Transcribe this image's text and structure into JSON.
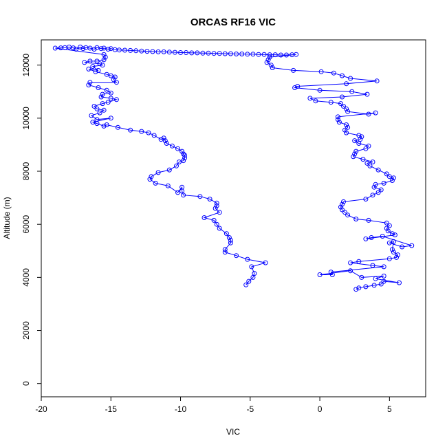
{
  "chart_data": {
    "type": "scatter",
    "title": "ORCAS RF16 VIC",
    "xlabel": "VIC",
    "ylabel": "Altitude (m)",
    "xlim": [
      -20,
      7.6
    ],
    "ylim": [
      -500,
      12950
    ],
    "x_ticks": [
      -20,
      -15,
      -10,
      -5,
      0,
      5
    ],
    "y_ticks": [
      0,
      2000,
      4000,
      6000,
      8000,
      10000,
      12000
    ],
    "grid": false,
    "legend": "none",
    "series": [
      {
        "color": "#0000ff",
        "marker": "open-circle",
        "connect": "line",
        "points": [
          [
            -5.3,
            3720
          ],
          [
            -5.1,
            3850
          ],
          [
            -4.8,
            4000
          ],
          [
            -4.7,
            4150
          ],
          [
            -4.9,
            4400
          ],
          [
            -3.9,
            4550
          ],
          [
            -5.2,
            4680
          ],
          [
            -6.0,
            4820
          ],
          [
            -6.8,
            4950
          ],
          [
            -6.8,
            5050
          ],
          [
            -6.4,
            5300
          ],
          [
            -6.4,
            5400
          ],
          [
            -6.5,
            5500
          ],
          [
            -6.7,
            5650
          ],
          [
            -7.2,
            5850
          ],
          [
            -7.4,
            6000
          ],
          [
            -7.6,
            6150
          ],
          [
            -8.3,
            6250
          ],
          [
            -7.2,
            6450
          ],
          [
            -7.5,
            6600
          ],
          [
            -7.4,
            6700
          ],
          [
            -7.4,
            6800
          ],
          [
            -7.9,
            6950
          ],
          [
            -8.6,
            7050
          ],
          [
            -9.8,
            7100
          ],
          [
            -9.9,
            7250
          ],
          [
            -9.9,
            7400
          ],
          [
            -10.2,
            7200
          ],
          [
            -10.9,
            7450
          ],
          [
            -11.8,
            7550
          ],
          [
            -12.2,
            7700
          ],
          [
            -12.1,
            7800
          ],
          [
            -11.6,
            7950
          ],
          [
            -10.8,
            8050
          ],
          [
            -10.3,
            8200
          ],
          [
            -10.1,
            8350
          ],
          [
            -9.8,
            8400
          ],
          [
            -9.7,
            8500
          ],
          [
            -9.7,
            8600
          ],
          [
            -9.8,
            8650
          ],
          [
            -9.9,
            8750
          ],
          [
            -10.2,
            8850
          ],
          [
            -10.6,
            8950
          ],
          [
            -11.0,
            9050
          ],
          [
            -11.1,
            9150
          ],
          [
            -11.2,
            9250
          ],
          [
            -11.4,
            9200
          ],
          [
            -11.9,
            9350
          ],
          [
            -12.3,
            9450
          ],
          [
            -12.8,
            9500
          ],
          [
            -13.6,
            9550
          ],
          [
            -14.5,
            9650
          ],
          [
            -15.3,
            9750
          ],
          [
            -15.5,
            9700
          ],
          [
            -16.0,
            9800
          ],
          [
            -16.3,
            9850
          ],
          [
            -15.0,
            10000
          ],
          [
            -16.0,
            9950
          ],
          [
            -16.4,
            10100
          ],
          [
            -15.8,
            10200
          ],
          [
            -15.5,
            10300
          ],
          [
            -16.0,
            10350
          ],
          [
            -16.2,
            10450
          ],
          [
            -15.6,
            10550
          ],
          [
            -15.2,
            10600
          ],
          [
            -14.6,
            10700
          ],
          [
            -15.0,
            10750
          ],
          [
            -15.7,
            10800
          ],
          [
            -15.6,
            10900
          ],
          [
            -15.0,
            10950
          ],
          [
            -15.3,
            11050
          ],
          [
            -15.9,
            11150
          ],
          [
            -16.6,
            11250
          ],
          [
            -16.5,
            11350
          ],
          [
            -14.6,
            11350
          ],
          [
            -14.8,
            11450
          ],
          [
            -14.7,
            11550
          ],
          [
            -15.0,
            11600
          ],
          [
            -15.3,
            11650
          ],
          [
            -16.1,
            11750
          ],
          [
            -16.6,
            11850
          ],
          [
            -15.9,
            11800
          ],
          [
            -16.3,
            11950
          ],
          [
            -15.6,
            12000
          ],
          [
            -15.8,
            12050
          ],
          [
            -16.9,
            12100
          ],
          [
            -16.5,
            12150
          ],
          [
            -16.0,
            12150
          ],
          [
            -15.5,
            12200
          ],
          [
            -15.4,
            12300
          ],
          [
            -15.5,
            12400
          ],
          [
            -19.0,
            12640
          ],
          [
            -18.6,
            12650
          ],
          [
            -18.3,
            12660
          ],
          [
            -18.0,
            12680
          ],
          [
            -17.7,
            12650
          ],
          [
            -17.5,
            12600
          ],
          [
            -17.2,
            12680
          ],
          [
            -17.0,
            12620
          ],
          [
            -16.8,
            12660
          ],
          [
            -16.5,
            12640
          ],
          [
            -16.2,
            12600
          ],
          [
            -16.0,
            12660
          ],
          [
            -15.7,
            12620
          ],
          [
            -15.5,
            12640
          ],
          [
            -15.2,
            12600
          ],
          [
            -15.0,
            12620
          ],
          [
            -14.7,
            12580
          ],
          [
            -14.4,
            12570
          ],
          [
            -14.0,
            12560
          ],
          [
            -13.6,
            12550
          ],
          [
            -13.2,
            12540
          ],
          [
            -12.8,
            12530
          ],
          [
            -12.4,
            12520
          ],
          [
            -12.0,
            12510
          ],
          [
            -11.6,
            12500
          ],
          [
            -11.2,
            12500
          ],
          [
            -10.8,
            12490
          ],
          [
            -10.4,
            12480
          ],
          [
            -10.0,
            12470
          ],
          [
            -9.6,
            12470
          ],
          [
            -9.2,
            12460
          ],
          [
            -8.8,
            12460
          ],
          [
            -8.4,
            12450
          ],
          [
            -8.0,
            12450
          ],
          [
            -7.6,
            12440
          ],
          [
            -7.2,
            12440
          ],
          [
            -6.8,
            12430
          ],
          [
            -6.4,
            12430
          ],
          [
            -6.0,
            12420
          ],
          [
            -5.6,
            12420
          ],
          [
            -5.2,
            12410
          ],
          [
            -4.8,
            12410
          ],
          [
            -4.4,
            12400
          ],
          [
            -4.0,
            12400
          ],
          [
            -3.6,
            12390
          ],
          [
            -3.2,
            12390
          ],
          [
            -2.8,
            12380
          ],
          [
            -2.4,
            12380
          ],
          [
            -2.0,
            12390
          ],
          [
            -1.7,
            12400
          ],
          [
            -3.6,
            12300
          ],
          [
            -3.7,
            12200
          ],
          [
            -3.8,
            12100
          ],
          [
            -3.5,
            12000
          ],
          [
            -3.4,
            11900
          ],
          [
            -1.9,
            11800
          ],
          [
            0.1,
            11750
          ],
          [
            1.0,
            11700
          ],
          [
            1.6,
            11600
          ],
          [
            2.2,
            11500
          ],
          [
            4.1,
            11400
          ],
          [
            1.9,
            11300
          ],
          [
            -1.6,
            11200
          ],
          [
            -1.8,
            11150
          ],
          [
            0.0,
            11050
          ],
          [
            2.3,
            11000
          ],
          [
            3.4,
            10900
          ],
          [
            1.6,
            10800
          ],
          [
            -0.7,
            10750
          ],
          [
            -0.3,
            10650
          ],
          [
            0.8,
            10600
          ],
          [
            1.5,
            10550
          ],
          [
            1.7,
            10450
          ],
          [
            1.9,
            10350
          ],
          [
            2.0,
            10250
          ],
          [
            3.5,
            10150
          ],
          [
            4.0,
            10200
          ],
          [
            1.3,
            10050
          ],
          [
            1.3,
            9950
          ],
          [
            1.4,
            9850
          ],
          [
            1.9,
            9750
          ],
          [
            2.0,
            9650
          ],
          [
            1.8,
            9550
          ],
          [
            1.9,
            9450
          ],
          [
            2.8,
            9350
          ],
          [
            3.0,
            9300
          ],
          [
            2.9,
            9200
          ],
          [
            2.5,
            9150
          ],
          [
            2.8,
            9050
          ],
          [
            3.5,
            8950
          ],
          [
            3.3,
            8850
          ],
          [
            2.6,
            8750
          ],
          [
            2.5,
            8650
          ],
          [
            2.4,
            8550
          ],
          [
            3.1,
            8450
          ],
          [
            3.8,
            8350
          ],
          [
            3.4,
            8300
          ],
          [
            3.6,
            8200
          ],
          [
            4.2,
            8050
          ],
          [
            4.8,
            7900
          ],
          [
            5.0,
            7800
          ],
          [
            5.3,
            7750
          ],
          [
            5.2,
            7650
          ],
          [
            4.6,
            7550
          ],
          [
            4.0,
            7500
          ],
          [
            3.9,
            7400
          ],
          [
            4.4,
            7300
          ],
          [
            4.2,
            7200
          ],
          [
            3.8,
            7100
          ],
          [
            3.3,
            6950
          ],
          [
            1.7,
            6850
          ],
          [
            1.6,
            6750
          ],
          [
            1.5,
            6650
          ],
          [
            1.6,
            6550
          ],
          [
            1.8,
            6450
          ],
          [
            2.0,
            6350
          ],
          [
            2.6,
            6200
          ],
          [
            3.5,
            6150
          ],
          [
            4.8,
            6050
          ],
          [
            5.0,
            5950
          ],
          [
            4.8,
            5850
          ],
          [
            4.9,
            5750
          ],
          [
            5.2,
            5650
          ],
          [
            5.4,
            5600
          ],
          [
            3.3,
            5450
          ],
          [
            3.7,
            5500
          ],
          [
            4.5,
            5550
          ],
          [
            6.6,
            5200
          ],
          [
            5.9,
            5150
          ],
          [
            5.0,
            5300
          ],
          [
            5.3,
            5350
          ],
          [
            5.2,
            5050
          ],
          [
            5.3,
            4950
          ],
          [
            5.6,
            4850
          ],
          [
            5.5,
            4750
          ],
          [
            5.0,
            4700
          ],
          [
            2.8,
            4600
          ],
          [
            2.2,
            4550
          ],
          [
            3.8,
            4450
          ],
          [
            4.6,
            4400
          ],
          [
            0.8,
            4200
          ],
          [
            0.9,
            4100
          ],
          [
            0.0,
            4100
          ],
          [
            2.2,
            4250
          ],
          [
            3.0,
            4000
          ],
          [
            4.6,
            4050
          ],
          [
            4.0,
            3950
          ],
          [
            5.7,
            3800
          ],
          [
            4.6,
            3850
          ],
          [
            4.4,
            3750
          ],
          [
            3.9,
            3700
          ],
          [
            3.3,
            3650
          ],
          [
            2.8,
            3600
          ],
          [
            2.6,
            3550
          ]
        ]
      }
    ]
  }
}
